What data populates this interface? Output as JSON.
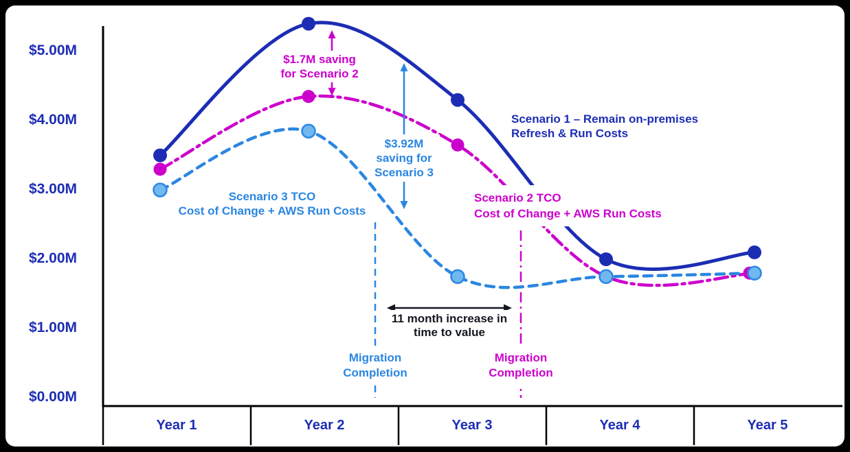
{
  "colors": {
    "scenario1": "#1C2DB4",
    "scenario2": "#CC00CC",
    "scenario3": "#2B86E2",
    "scenario3_point_fill": "#6FB9F0",
    "axis": "#000000",
    "increase_text": "#14181F"
  },
  "chart_data": {
    "type": "line",
    "title": "",
    "xlabel": "",
    "ylabel": "",
    "x_categories": [
      "Year 1",
      "Year 2",
      "Year 3",
      "Year 4",
      "Year 5"
    ],
    "y_tick_labels": [
      "$5.00M",
      "$4.00M",
      "$3.00M",
      "$2.00M",
      "$1.00M",
      "$0.00M"
    ],
    "y_tick_values": [
      5,
      4,
      3,
      2,
      1,
      0
    ],
    "ylim": [
      0,
      5.5
    ],
    "grid": false,
    "legend_position": "inline-annotations",
    "series": [
      {
        "name": "Scenario 1 – Remain on-premises Refresh & Run Costs",
        "line_style": "solid",
        "color": "#1C2DB4",
        "values_musd": [
          3.5,
          5.4,
          4.3,
          2.0,
          2.1
        ]
      },
      {
        "name": "Scenario 2 TCO – Cost of Change + AWS Run Costs",
        "line_style": "dash-dot",
        "color": "#CC00CC",
        "values_musd": [
          3.3,
          4.35,
          3.65,
          1.75,
          1.8
        ]
      },
      {
        "name": "Scenario 3 TCO – Cost of Change + AWS Run Costs",
        "line_style": "dashed",
        "color": "#2B86E2",
        "point_fill": "#6FB9F0",
        "point_stroke": "#2B86E2",
        "values_musd": [
          3.0,
          3.85,
          1.75,
          1.75,
          1.8
        ]
      }
    ],
    "savings": {
      "scenario2_musd": 1.7,
      "scenario3_musd": 3.92
    },
    "annotations": {
      "saving_scenario2": {
        "line1": "$1.7M saving",
        "line2": "for Scenario 2"
      },
      "saving_scenario3": {
        "line1": "$3.92M",
        "line2": "saving for",
        "line3": "Scenario 3"
      },
      "series_label_s1": {
        "line1": "Scenario 1 – Remain on-premises",
        "line2": "Refresh & Run Costs"
      },
      "series_label_s3": {
        "line1": "Scenario 3 TCO",
        "line2": "Cost of Change + AWS Run Costs"
      },
      "series_label_s2": {
        "line1": "Scenario 2 TCO",
        "line2": "Cost of Change + AWS Run Costs"
      },
      "time_to_value": {
        "line1": "11 month increase in",
        "line2": "time to value"
      },
      "migration_completion_s3": {
        "line1": "Migration",
        "line2": "Completion"
      },
      "migration_completion_s2": {
        "line1": "Migration",
        "line2": "Completion"
      }
    }
  }
}
